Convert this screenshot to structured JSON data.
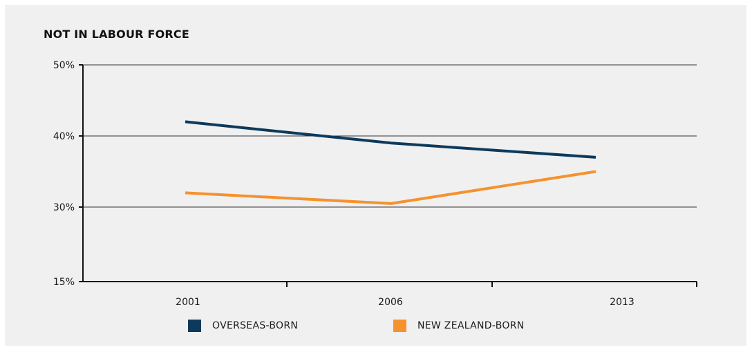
{
  "chart_data": {
    "type": "line",
    "title": "NOT IN LABOUR FORCE",
    "x": [
      "2001",
      "2006",
      "2013"
    ],
    "y_ticks": [
      "50%",
      "40%",
      "30%",
      "15%"
    ],
    "grid": true,
    "legend_position": "bottom",
    "series": [
      {
        "name": "OVERSEAS-BORN",
        "color": "#0d3a5c",
        "values": [
          42,
          39,
          37
        ]
      },
      {
        "name": "NEW ZEALAND-BORN",
        "color": "#f5922e",
        "values": [
          32,
          30.5,
          35
        ]
      }
    ]
  }
}
